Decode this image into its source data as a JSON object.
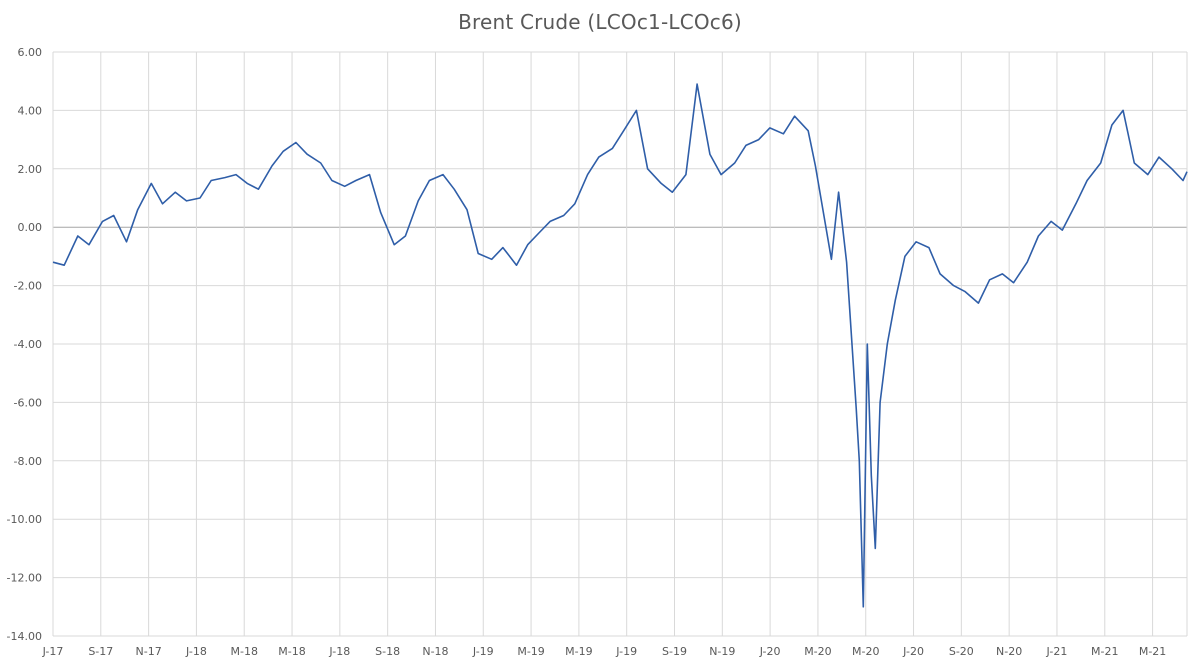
{
  "chart_data": {
    "type": "line",
    "title": "Brent Crude (LCOc1-LCOc6)",
    "xlabel": "",
    "ylabel": "",
    "ylim": [
      -14,
      6
    ],
    "yticks": [
      "6.00",
      "4.00",
      "2.00",
      "0.00",
      "-2.00",
      "-4.00",
      "-6.00",
      "-8.00",
      "-10.00",
      "-12.00",
      "-14.00"
    ],
    "ytick_values": [
      6,
      4,
      2,
      0,
      -2,
      -4,
      -6,
      -8,
      -10,
      -12,
      -14
    ],
    "xtick_labels": [
      "J-17",
      "S-17",
      "N-17",
      "J-18",
      "M-18",
      "M-18",
      "J-18",
      "S-18",
      "N-18",
      "J-19",
      "M-19",
      "M-19",
      "J-19",
      "S-19",
      "N-19",
      "J-20",
      "M-20",
      "M-20",
      "J-20",
      "S-20",
      "N-20",
      "J-21",
      "M-21",
      "M-21"
    ],
    "xlim": [
      "2017-07-01",
      "2021-05-20"
    ],
    "grid": true,
    "line_color": "#2f5ea8",
    "series": [
      {
        "x": [
          "2017-07-01",
          "2017-07-15",
          "2017-08-01",
          "2017-08-15",
          "2017-09-01",
          "2017-09-15",
          "2017-10-01",
          "2017-10-15",
          "2017-11-01",
          "2017-11-15",
          "2017-12-01",
          "2017-12-15",
          "2018-01-01",
          "2018-01-15",
          "2018-02-01",
          "2018-02-15",
          "2018-03-01",
          "2018-03-15",
          "2018-04-01",
          "2018-04-15",
          "2018-05-01",
          "2018-05-15",
          "2018-06-01",
          "2018-06-15",
          "2018-07-01",
          "2018-07-15",
          "2018-08-01",
          "2018-08-15",
          "2018-09-01",
          "2018-09-15",
          "2018-10-01",
          "2018-10-15",
          "2018-11-01",
          "2018-11-15",
          "2018-12-01",
          "2018-12-15",
          "2019-01-01",
          "2019-01-15",
          "2019-02-01",
          "2019-02-15",
          "2019-03-01",
          "2019-03-15",
          "2019-04-01",
          "2019-04-15",
          "2019-05-01",
          "2019-05-15",
          "2019-06-01",
          "2019-06-15",
          "2019-07-01",
          "2019-07-15",
          "2019-08-01",
          "2019-08-15",
          "2019-09-01",
          "2019-09-15",
          "2019-10-01",
          "2019-10-15",
          "2019-11-01",
          "2019-11-15",
          "2019-12-01",
          "2019-12-15",
          "2020-01-01",
          "2020-01-15",
          "2020-02-01",
          "2020-02-10",
          "2020-02-20",
          "2020-03-01",
          "2020-03-10",
          "2020-03-20",
          "2020-04-01",
          "2020-04-05",
          "2020-04-10",
          "2020-04-15",
          "2020-04-20",
          "2020-04-25",
          "2020-05-01",
          "2020-05-10",
          "2020-05-20",
          "2020-06-01",
          "2020-06-15",
          "2020-07-01",
          "2020-07-15",
          "2020-08-01",
          "2020-08-15",
          "2020-09-01",
          "2020-09-15",
          "2020-10-01",
          "2020-10-15",
          "2020-11-01",
          "2020-11-15",
          "2020-12-01",
          "2020-12-15",
          "2021-01-01",
          "2021-01-15",
          "2021-02-01",
          "2021-02-15",
          "2021-03-01",
          "2021-03-15",
          "2021-04-01",
          "2021-04-15",
          "2021-05-01",
          "2021-05-15",
          "2021-05-20"
        ],
        "y": [
          -1.2,
          -1.3,
          -0.3,
          -0.6,
          0.2,
          0.4,
          -0.5,
          0.6,
          1.5,
          0.8,
          1.2,
          0.9,
          1.0,
          1.6,
          1.7,
          1.8,
          1.5,
          1.3,
          2.1,
          2.6,
          2.9,
          2.5,
          2.2,
          1.6,
          1.4,
          1.6,
          1.8,
          0.5,
          -0.6,
          -0.3,
          0.9,
          1.6,
          1.8,
          1.3,
          0.6,
          -0.9,
          -1.1,
          -0.7,
          -1.3,
          -0.6,
          -0.2,
          0.2,
          0.4,
          0.8,
          1.8,
          2.4,
          2.7,
          3.3,
          4.0,
          2.0,
          1.5,
          1.2,
          1.8,
          4.9,
          2.5,
          1.8,
          2.2,
          2.8,
          3.0,
          3.4,
          3.2,
          3.8,
          3.3,
          2.1,
          0.5,
          -1.1,
          1.2,
          -1.2,
          -6.2,
          -8.0,
          -13.0,
          -4.0,
          -8.5,
          -11.0,
          -6.0,
          -4.0,
          -2.5,
          -1.0,
          -0.5,
          -0.7,
          -1.6,
          -2.0,
          -2.2,
          -2.6,
          -1.8,
          -1.6,
          -1.9,
          -1.2,
          -0.3,
          0.2,
          -0.1,
          0.8,
          1.6,
          2.2,
          3.5,
          4.0,
          2.2,
          1.8,
          2.4,
          2.0,
          1.6,
          1.9
        ]
      }
    ]
  }
}
